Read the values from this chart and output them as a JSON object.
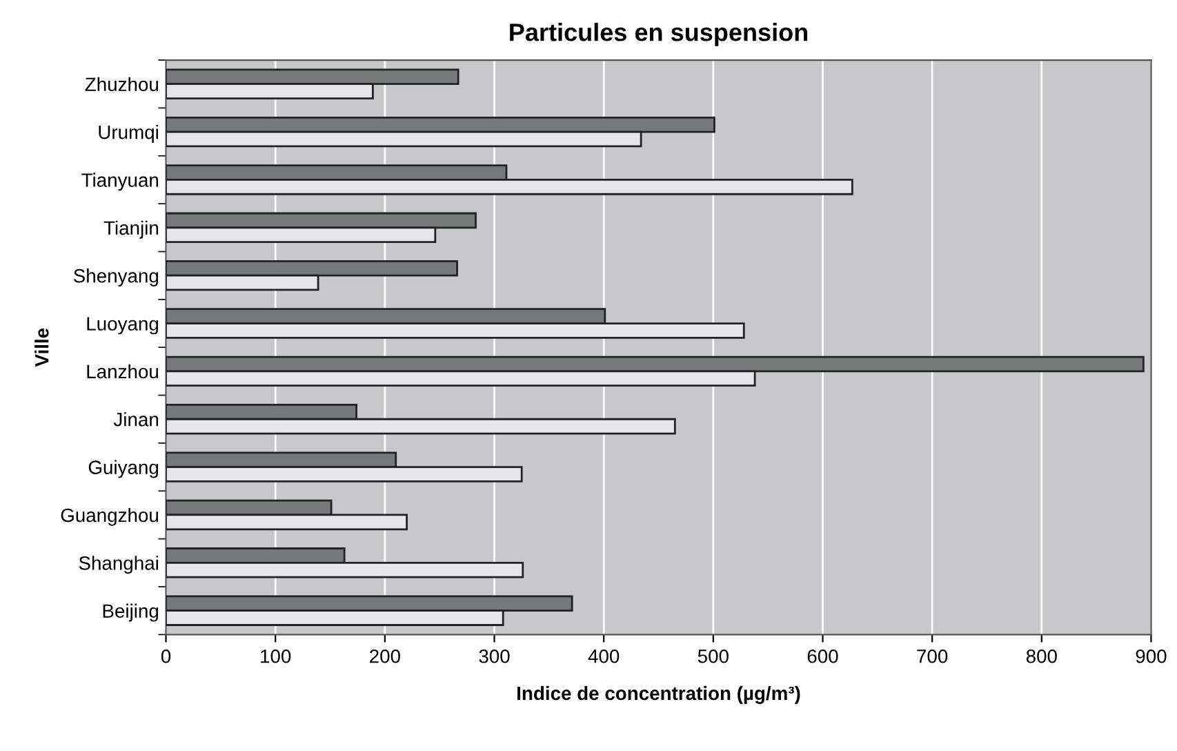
{
  "chart_data": {
    "type": "bar",
    "orientation": "horizontal",
    "title": "Particules en suspension",
    "xlabel": "Indice de concentration (µg/m³)",
    "ylabel": "Ville",
    "categories": [
      "Zhuzhou",
      "Urumqi",
      "Tianyuan",
      "Tianjin",
      "Shenyang",
      "Luoyang",
      "Lanzhou",
      "Jinan",
      "Guiyang",
      "Guangzhou",
      "Shanghai",
      "Beijing"
    ],
    "series": [
      {
        "color": "#77787c",
        "values": [
          267,
          501,
          311,
          283,
          266,
          401,
          893,
          174,
          210,
          151,
          163,
          371
        ]
      },
      {
        "color": "#e6e6e8",
        "values": [
          189,
          434,
          627,
          246,
          139,
          528,
          538,
          465,
          325,
          220,
          326,
          308
        ]
      }
    ],
    "xlim": [
      0,
      900
    ],
    "xticks": [
      0,
      100,
      200,
      300,
      400,
      500,
      600,
      700,
      800,
      900
    ],
    "grid": "x"
  }
}
